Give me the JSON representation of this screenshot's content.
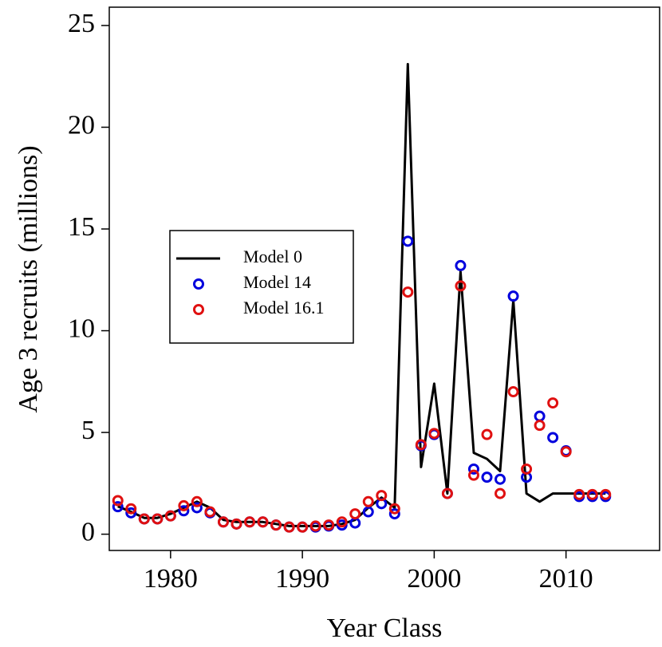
{
  "chart_data": {
    "type": "line",
    "x_label": "Year Class",
    "y_label": "Age 3 recruits (millions)",
    "x": [
      1976,
      1977,
      1978,
      1979,
      1980,
      1981,
      1982,
      1983,
      1984,
      1985,
      1986,
      1987,
      1988,
      1989,
      1990,
      1991,
      1992,
      1993,
      1994,
      1995,
      1996,
      1997,
      1998,
      1999,
      2000,
      2001,
      2002,
      2003,
      2004,
      2005,
      2006,
      2007,
      2008,
      2009,
      2010,
      2011,
      2012,
      2013
    ],
    "series": [
      {
        "name": "Model 0",
        "color": "#000000",
        "style": "line",
        "values": [
          1.37,
          1.1,
          0.8,
          0.8,
          1.0,
          1.3,
          1.6,
          1.3,
          0.7,
          0.6,
          0.6,
          0.6,
          0.5,
          0.4,
          0.4,
          0.4,
          0.4,
          0.5,
          0.7,
          1.3,
          1.8,
          1.3,
          23.1,
          3.3,
          7.4,
          2.0,
          12.9,
          4.0,
          3.7,
          3.1,
          11.5,
          2.0,
          1.6,
          2.0,
          2.0,
          2.0,
          2.0,
          2.0
        ]
      },
      {
        "name": "Model 14",
        "color": "#0000dd",
        "style": "points",
        "values": [
          1.35,
          1.05,
          0.75,
          0.75,
          0.9,
          1.15,
          1.3,
          1.05,
          0.6,
          0.5,
          0.6,
          0.6,
          0.45,
          0.35,
          0.35,
          0.35,
          0.4,
          0.45,
          0.55,
          1.1,
          1.5,
          1.0,
          14.4,
          4.35,
          4.9,
          2.0,
          13.2,
          3.2,
          2.8,
          2.7,
          11.7,
          2.8,
          5.8,
          4.75,
          4.1,
          1.85,
          1.85,
          1.85
        ]
      },
      {
        "name": "Model 16.1",
        "color": "#e01010",
        "style": "points",
        "values": [
          1.65,
          1.25,
          0.75,
          0.75,
          0.9,
          1.4,
          1.6,
          1.1,
          0.6,
          0.5,
          0.6,
          0.6,
          0.45,
          0.35,
          0.35,
          0.4,
          0.45,
          0.6,
          1.0,
          1.6,
          1.9,
          1.25,
          11.9,
          4.4,
          4.95,
          2.0,
          12.2,
          2.9,
          4.9,
          2.0,
          7.0,
          3.2,
          5.35,
          6.45,
          4.05,
          1.95,
          1.95,
          1.95
        ]
      }
    ],
    "xlim": [
      1975.35,
      2017.1
    ],
    "xticks": [
      1980,
      1990,
      2000,
      2010
    ],
    "ylim": [
      -0.8,
      25.9
    ],
    "yticks": [
      0,
      5,
      10,
      15,
      20,
      25
    ],
    "grid": false,
    "legend": "left"
  }
}
